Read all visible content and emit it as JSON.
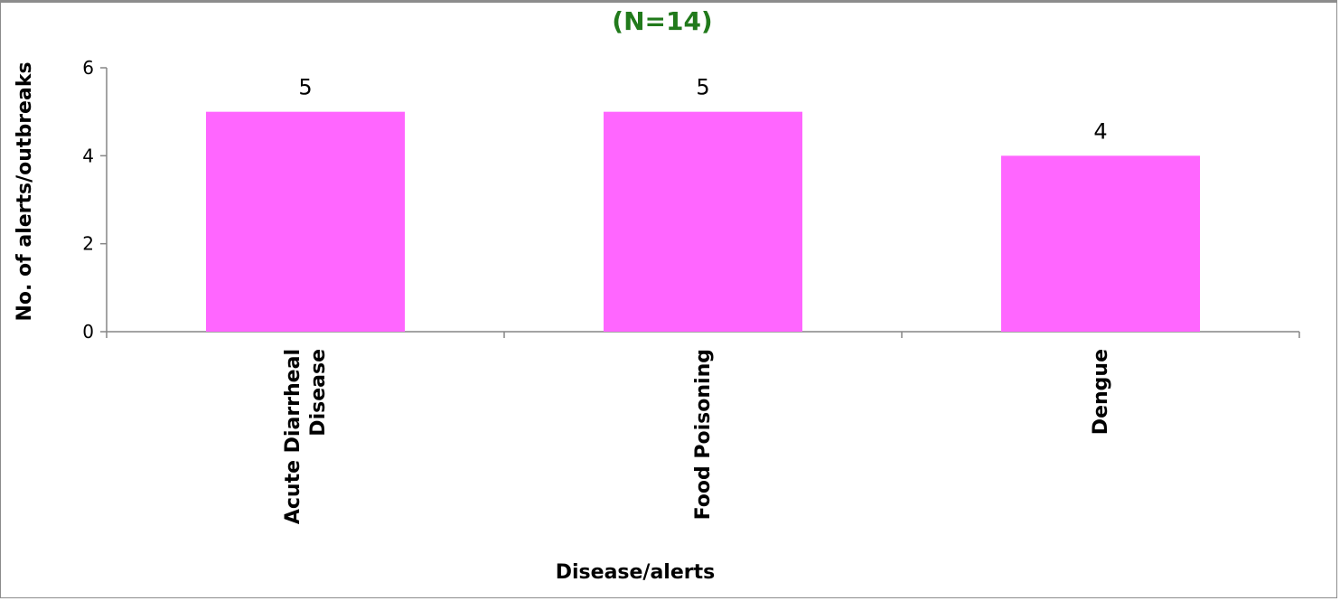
{
  "chart_data": {
    "type": "bar",
    "title": "(N=14)",
    "title_color": "#217a1b",
    "categories": [
      [
        "Acute Diarrheal",
        "Disease"
      ],
      [
        "Food Poisoning"
      ],
      [
        "Dengue"
      ]
    ],
    "values": [
      5,
      5,
      4
    ],
    "bar_color": "#ff66ff",
    "xlabel": "Disease/alerts",
    "ylabel": "No. of alerts/outbreaks",
    "ylim": [
      0,
      6
    ],
    "yticks": [
      0,
      2,
      4,
      6
    ],
    "grid": false,
    "data_labels": true
  }
}
